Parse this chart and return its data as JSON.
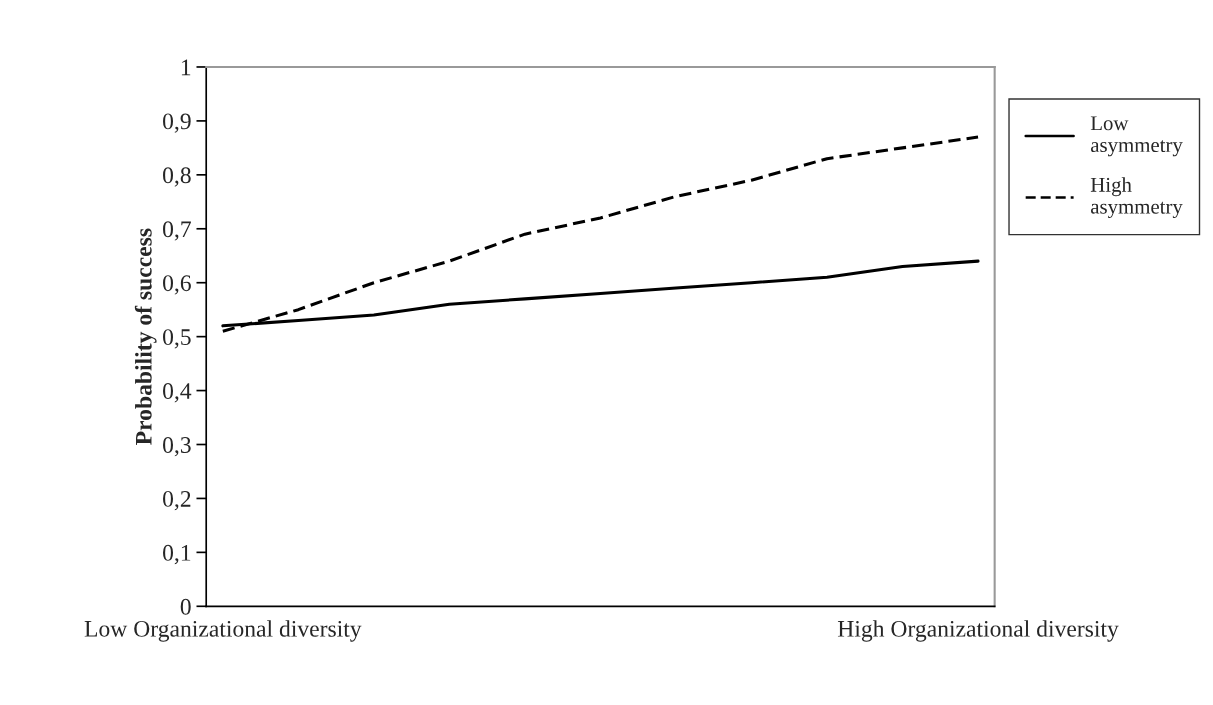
{
  "chart_data": {
    "type": "line",
    "ylabel": "Probability of success",
    "categories": [
      "Low Organizational diversity",
      null,
      null,
      null,
      null,
      null,
      null,
      null,
      null,
      null,
      "High Organizational diversity"
    ],
    "series": [
      {
        "name": "Low asymmetry",
        "color": "#000000",
        "line_style": "solid",
        "values": [
          0.52,
          0.53,
          0.54,
          0.56,
          0.57,
          0.58,
          0.59,
          0.6,
          0.61,
          0.63,
          0.64
        ]
      },
      {
        "name": "High asymmetry",
        "color": "#000000",
        "line_style": "dashed",
        "values": [
          0.51,
          0.55,
          0.6,
          0.64,
          0.69,
          0.72,
          0.76,
          0.79,
          0.83,
          0.85,
          0.87
        ]
      }
    ],
    "ylim": [
      0,
      1
    ],
    "yticks": [
      0,
      {
        "value": 0.1,
        "label": "0,1"
      },
      {
        "value": 0.2,
        "label": "0,2"
      },
      {
        "value": 0.3,
        "label": "0,3"
      },
      {
        "value": 0.4,
        "label": "0,4"
      },
      {
        "value": 0.5,
        "label": "0,5"
      },
      {
        "value": 0.6,
        "label": "0,6"
      },
      {
        "value": 0.7,
        "label": "0,7"
      },
      {
        "value": 0.8,
        "label": "0,8"
      },
      {
        "value": 0.9,
        "label": "0,9"
      },
      1
    ],
    "grid": false,
    "legend": "top right",
    "marker": "none"
  }
}
